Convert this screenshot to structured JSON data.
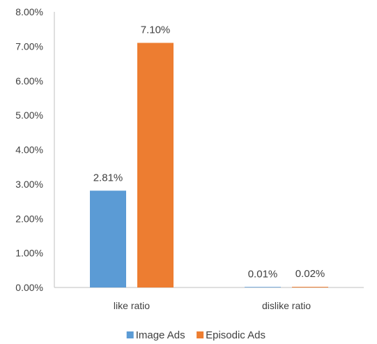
{
  "chart_data": {
    "type": "bar",
    "categories": [
      "like ratio",
      "dislike ratio"
    ],
    "series": [
      {
        "name": "Image Ads",
        "values": [
          2.81,
          0.01
        ],
        "labels": [
          "2.81%",
          "0.01%"
        ],
        "color": "#5b9bd5"
      },
      {
        "name": "Episodic Ads",
        "values": [
          7.1,
          0.02
        ],
        "labels": [
          "7.10%",
          "0.02%"
        ],
        "color": "#ed7d31"
      }
    ],
    "ylim": [
      0,
      8
    ],
    "yticks": [
      "0.00%",
      "1.00%",
      "2.00%",
      "3.00%",
      "4.00%",
      "5.00%",
      "6.00%",
      "7.00%",
      "8.00%"
    ],
    "grid": false,
    "legend_position": "bottom",
    "title": "",
    "xlabel": "",
    "ylabel": ""
  }
}
